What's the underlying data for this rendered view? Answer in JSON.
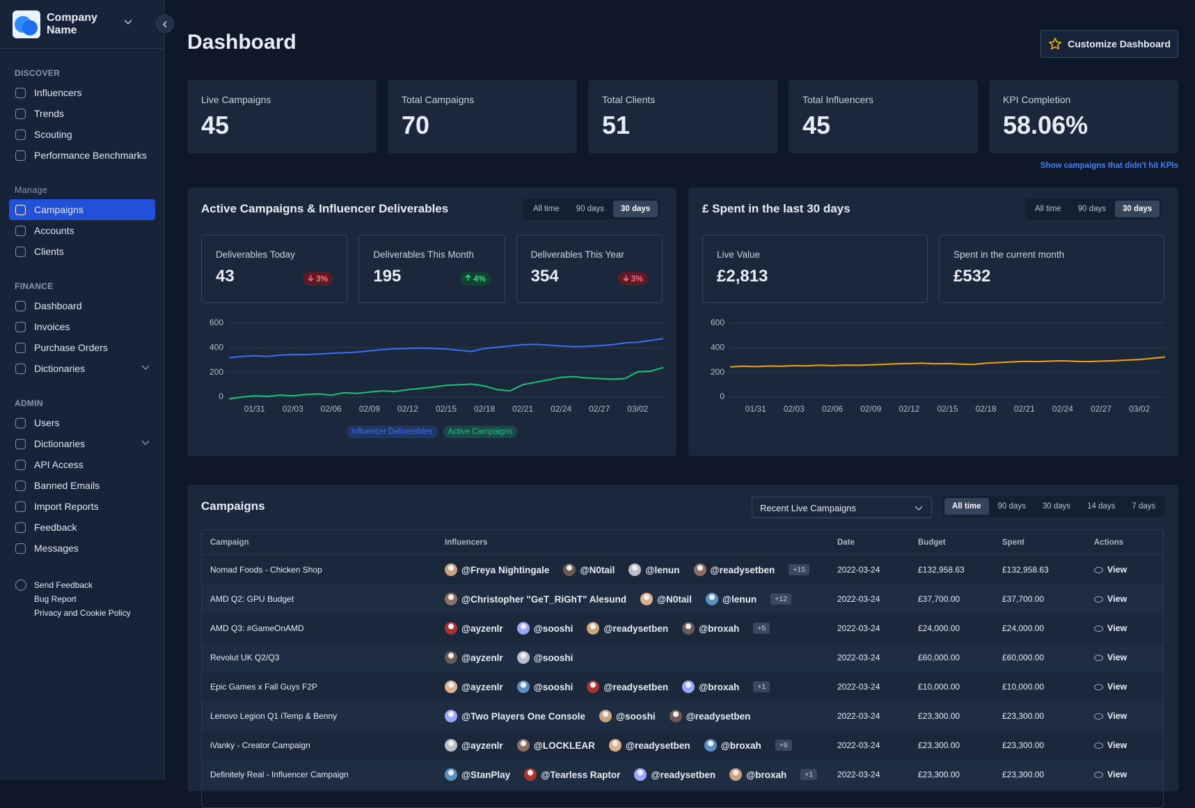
{
  "sidebar": {
    "company": "Company Name",
    "sections": [
      {
        "title": "DISCOVER",
        "items": [
          {
            "label": "Influencers"
          },
          {
            "label": "Trends"
          },
          {
            "label": "Scouting"
          },
          {
            "label": "Performance Benchmarks"
          }
        ]
      },
      {
        "title": "Manage",
        "items": [
          {
            "label": "Campaigns",
            "active": true
          },
          {
            "label": "Accounts"
          },
          {
            "label": "Clients"
          }
        ]
      },
      {
        "title": "FINANCE",
        "items": [
          {
            "label": "Dashboard"
          },
          {
            "label": "Invoices"
          },
          {
            "label": "Purchase Orders"
          },
          {
            "label": "Dictionaries",
            "submenu": true
          }
        ]
      },
      {
        "title": "ADMIN",
        "items": [
          {
            "label": "Users"
          },
          {
            "label": "Dictionaries",
            "submenu": true
          },
          {
            "label": "API Access"
          },
          {
            "label": "Banned Emails"
          },
          {
            "label": "Import Reports"
          },
          {
            "label": "Feedback"
          },
          {
            "label": "Messages"
          }
        ]
      }
    ],
    "footer": [
      "Send Feedback",
      "Bug Report",
      "Privacy and Cookie Policy"
    ]
  },
  "header": {
    "title": "Dashboard",
    "button": "Customize Dashboard"
  },
  "stats": [
    {
      "label": "Live Campaigns",
      "value": "45"
    },
    {
      "label": "Total Campaigns",
      "value": "70"
    },
    {
      "label": "Total Clients",
      "value": "51"
    },
    {
      "label": "Total Influencers",
      "value": "45"
    },
    {
      "label": "KPI Completion",
      "value": "58.06%"
    }
  ],
  "kpi_link": "Show campaigns that didn't hit KPIs",
  "panels": [
    {
      "ranges": [
        "All time",
        "90 days",
        "30 days"
      ],
      "cards": [
        {
          "label": "Deliverables Today",
          "value": "43",
          "change": "3%",
          "trend": "down"
        },
        {
          "label": "Deliverables This Month",
          "value": "195",
          "change": "4%",
          "trend": "up"
        },
        {
          "label": "Deliverables This Year",
          "value": "354",
          "change": "3%",
          "trend": "down"
        }
      ]
    },
    {
      "ranges": [
        "All time",
        "90 days",
        "30 days"
      ],
      "cards": [
        {
          "label": "Live Value",
          "value": "£2,813"
        },
        {
          "label": "Spent in the current month",
          "value": "£532"
        }
      ]
    }
  ],
  "chart_data": [
    {
      "type": "line",
      "title": "Active Campaigns & Influencer Deliverables",
      "categories": [
        null,
        null,
        "01/31",
        null,
        null,
        "02/03",
        null,
        null,
        "02/06",
        null,
        null,
        "02/09",
        null,
        null,
        "02/12",
        null,
        null,
        "02/15",
        null,
        null,
        "02/18",
        null,
        null,
        "02/21",
        null,
        null,
        "02/24",
        null,
        null,
        "02/27",
        null,
        null,
        "03/02",
        null,
        null
      ],
      "series": [
        {
          "name": "Influencer Deliverables",
          "color": "#3b6ff5",
          "values": [
            320,
            330,
            335,
            330,
            340,
            345,
            345,
            350,
            355,
            360,
            365,
            375,
            385,
            392,
            395,
            398,
            395,
            390,
            380,
            370,
            395,
            405,
            415,
            425,
            428,
            422,
            415,
            410,
            412,
            418,
            425,
            440,
            445,
            460,
            475
          ]
        },
        {
          "name": "Active Campaigns",
          "color": "#19c37d",
          "values": [
            -15,
            0,
            10,
            5,
            15,
            10,
            20,
            25,
            15,
            35,
            30,
            40,
            50,
            45,
            60,
            70,
            80,
            95,
            100,
            105,
            90,
            60,
            50,
            100,
            120,
            140,
            160,
            165,
            155,
            150,
            145,
            150,
            205,
            210,
            240
          ]
        }
      ],
      "ylim": [
        -20,
        620
      ],
      "yticks": [
        0,
        200,
        400,
        600
      ],
      "grid": true
    },
    {
      "type": "line",
      "title": "£ Spent in the last 30 days",
      "categories": [
        null,
        null,
        "01/31",
        null,
        null,
        "02/03",
        null,
        null,
        "02/06",
        null,
        null,
        "02/09",
        null,
        null,
        "02/12",
        null,
        null,
        "02/15",
        null,
        null,
        "02/18",
        null,
        null,
        "02/21",
        null,
        null,
        "02/24",
        null,
        null,
        "02/27",
        null,
        null,
        "03/02",
        null,
        null
      ],
      "series": [
        {
          "color": "#f0a500",
          "values": [
            245,
            250,
            248,
            252,
            250,
            255,
            253,
            258,
            255,
            260,
            258,
            262,
            265,
            270,
            272,
            275,
            270,
            272,
            268,
            265,
            275,
            280,
            285,
            290,
            288,
            292,
            295,
            290,
            288,
            292,
            295,
            300,
            305,
            315,
            325
          ]
        }
      ],
      "ylim": [
        -20,
        620
      ],
      "yticks": [
        0,
        200,
        400,
        600
      ],
      "grid": true
    }
  ],
  "campaigns": {
    "title": "Campaigns",
    "filter": "Recent Live Campaigns",
    "ranges": [
      "All time",
      "90 days",
      "30 days",
      "14 days",
      "7 days"
    ],
    "columns": [
      "Campaign",
      "Influencers",
      "Date",
      "Budget",
      "Spent",
      "Actions"
    ],
    "rows": [
      {
        "campaign": "Nomad Foods - Chicken Shop",
        "influencers": [
          "@Freya Nightingale",
          "@N0tail",
          "@lenun",
          "@readysetben"
        ],
        "more": "+15",
        "date": "2022-03-24",
        "budget": "£132,958.63",
        "spent": "£132,958.63",
        "action": "View"
      },
      {
        "campaign": "AMD Q2: GPU Budget",
        "influencers": [
          "@Christopher \"GeT_RiGhT\" Alesund",
          "@N0tail",
          "@lenun"
        ],
        "more": "+12",
        "date": "2022-03-24",
        "budget": "£37,700.00",
        "spent": "£37,700.00",
        "action": "View"
      },
      {
        "campaign": "AMD Q3: #GameOnAMD",
        "influencers": [
          "@ayzenlr",
          "@sooshi",
          "@readysetben",
          "@broxah"
        ],
        "more": "+5",
        "date": "2022-03-24",
        "budget": "£24,000.00",
        "spent": "£24,000.00",
        "action": "View"
      },
      {
        "campaign": "Revolut UK Q2/Q3",
        "influencers": [
          "@ayzenlr",
          "@sooshi"
        ],
        "date": "2022-03-24",
        "budget": "£60,000.00",
        "spent": "£60,000.00",
        "action": "View"
      },
      {
        "campaign": "Epic Games x Fall Guys F2P",
        "influencers": [
          "@ayzenlr",
          "@sooshi",
          "@readysetben",
          "@broxah"
        ],
        "more": "+1",
        "date": "2022-03-24",
        "budget": "£10,000.00",
        "spent": "£10,000.00",
        "action": "View"
      },
      {
        "campaign": "Lenovo Legion Q1 iTemp & Benny",
        "influencers": [
          "@Two Players One Console",
          "@sooshi",
          "@readysetben"
        ],
        "date": "2022-03-24",
        "budget": "£23,300.00",
        "spent": "£23,300.00",
        "action": "View"
      },
      {
        "campaign": "iVanky - Creator Campaign",
        "influencers": [
          "@ayzenlr",
          "@LOCKLEAR",
          "@readysetben",
          "@broxah"
        ],
        "more": "+6",
        "date": "2022-03-24",
        "budget": "£23,300.00",
        "spent": "£23,300.00",
        "action": "View"
      },
      {
        "campaign": "Definitely Real - Influencer Campaign",
        "influencers": [
          "@StanPlay",
          "@Tearless Raptor",
          "@readysetben",
          "@broxah"
        ],
        "more": "+1",
        "date": "2022-03-24",
        "budget": "£23,300.00",
        "spent": "£23,300.00",
        "action": "View"
      }
    ]
  }
}
